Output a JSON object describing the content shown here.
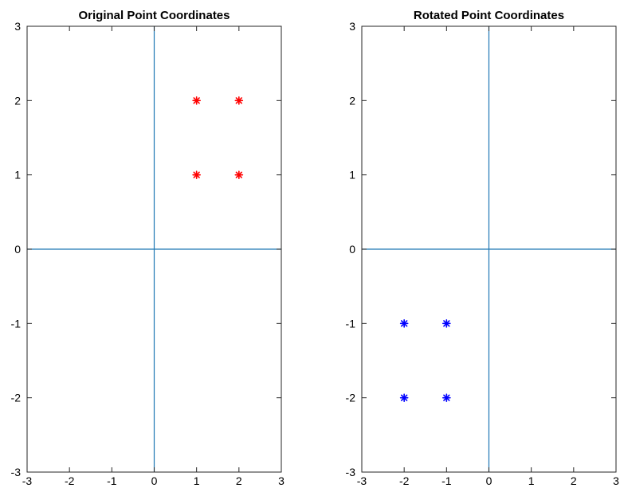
{
  "chart_data": [
    {
      "type": "scatter",
      "title": "Original Point Coordinates",
      "xlim": [
        -3,
        3
      ],
      "ylim": [
        -3,
        3
      ],
      "xticks": [
        -3,
        -2,
        -1,
        0,
        1,
        2,
        3
      ],
      "yticks": [
        -3,
        -2,
        -1,
        0,
        1,
        2,
        3
      ],
      "grid": false,
      "reference_lines": {
        "x": 0,
        "y": 0,
        "color": "#1f77b4"
      },
      "series": [
        {
          "marker": "asterisk",
          "color": "#ff0000",
          "points": [
            [
              1,
              1
            ],
            [
              2,
              1
            ],
            [
              1,
              2
            ],
            [
              2,
              2
            ]
          ]
        }
      ]
    },
    {
      "type": "scatter",
      "title": "Rotated Point Coordinates",
      "xlim": [
        -3,
        3
      ],
      "ylim": [
        -3,
        3
      ],
      "xticks": [
        -3,
        -2,
        -1,
        0,
        1,
        2,
        3
      ],
      "yticks": [
        -3,
        -2,
        -1,
        0,
        1,
        2,
        3
      ],
      "grid": false,
      "reference_lines": {
        "x": 0,
        "y": 0,
        "color": "#1f77b4"
      },
      "series": [
        {
          "marker": "asterisk",
          "color": "#0000ff",
          "points": [
            [
              -1,
              -1
            ],
            [
              -2,
              -1
            ],
            [
              -1,
              -2
            ],
            [
              -2,
              -2
            ]
          ]
        }
      ]
    }
  ]
}
